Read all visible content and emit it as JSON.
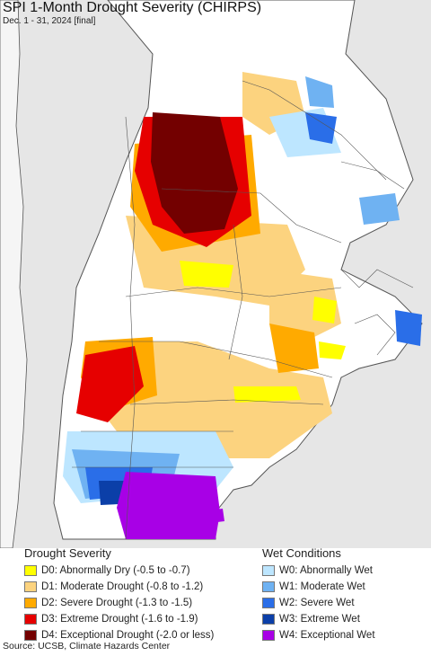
{
  "header": {
    "title": "SPI 1-Month Drought Severity (CHIRPS)",
    "subtitle": "Dec. 1 - 31, 2024 [final]"
  },
  "legend": {
    "drought": {
      "title": "Drought Severity",
      "items": [
        {
          "label": "D0: Abnormally Dry (-0.5 to -0.7)",
          "color": "#ffff00"
        },
        {
          "label": "D1: Moderate Drought (-0.8 to -1.2)",
          "color": "#fcd37f"
        },
        {
          "label": "D2: Severe Drought (-1.3 to -1.5)",
          "color": "#ffaa00"
        },
        {
          "label": "D3: Extreme Drought (-1.6 to -1.9)",
          "color": "#e60000"
        },
        {
          "label": "D4: Exceptional Drought (-2.0 or less)",
          "color": "#730000"
        }
      ]
    },
    "wet": {
      "title": "Wet Conditions",
      "items": [
        {
          "label": "W0: Abnormally Wet",
          "color": "#bde6ff"
        },
        {
          "label": "W1: Moderate Wet",
          "color": "#6fb2f2"
        },
        {
          "label": "W2: Severe Wet",
          "color": "#2a6ee8"
        },
        {
          "label": "W3: Extreme Wet",
          "color": "#0b3fa8"
        },
        {
          "label": "W4: Exceptional Wet",
          "color": "#a800e6"
        }
      ]
    }
  },
  "footer": {
    "source": "Source: UCSB, Climate Hazards Center"
  },
  "colors": {
    "land_outside": "#e6e6e6",
    "region_fill": "#ffffff",
    "borders": "#555555"
  }
}
